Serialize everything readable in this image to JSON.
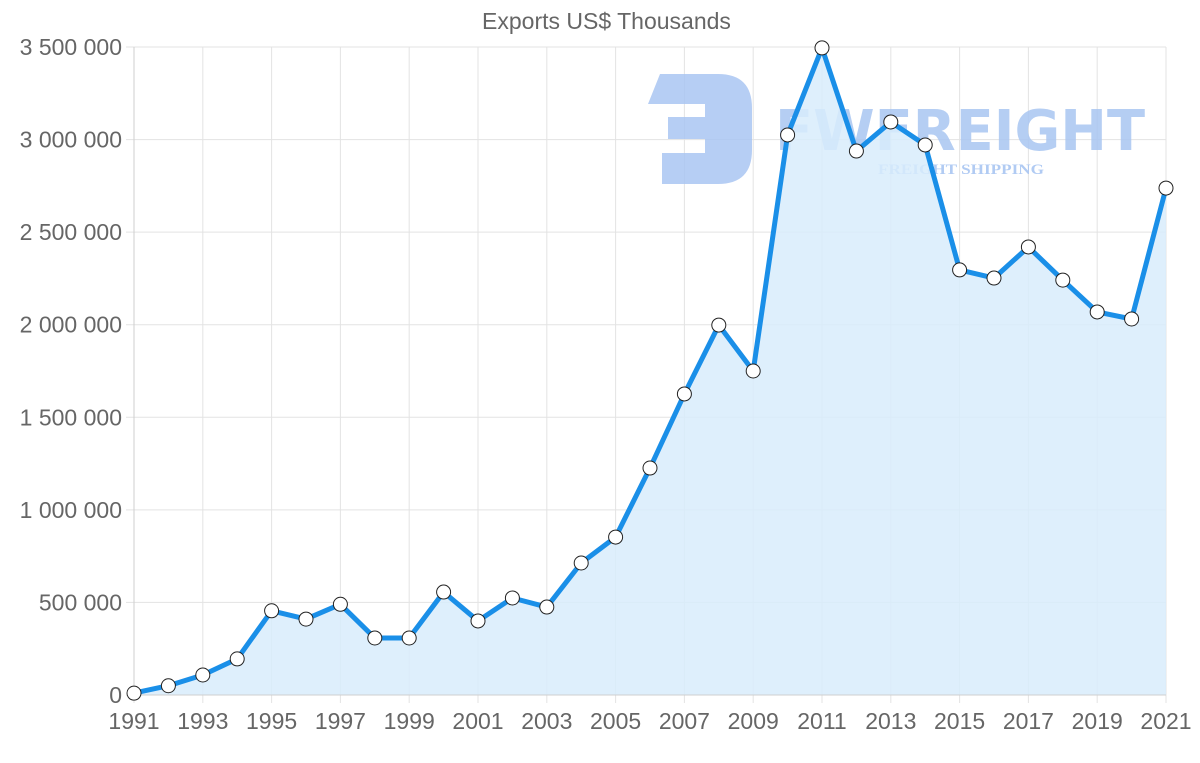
{
  "chart_data": {
    "type": "area",
    "title": "Exports US$ Thousands",
    "xlabel": "",
    "ylabel": "",
    "x": [
      1991,
      1992,
      1993,
      1994,
      1995,
      1996,
      1997,
      1998,
      1999,
      2000,
      2001,
      2002,
      2003,
      2004,
      2005,
      2006,
      2007,
      2008,
      2009,
      2010,
      2011,
      2012,
      2013,
      2014,
      2015,
      2016,
      2017,
      2018,
      2019,
      2020,
      2021
    ],
    "series": [
      {
        "name": "Exports US$ Thousands",
        "values": [
          10000,
          50000,
          108000,
          195000,
          455000,
          410000,
          490000,
          308000,
          308000,
          556000,
          400000,
          524000,
          475000,
          713000,
          853000,
          1226000,
          1626000,
          1998000,
          1750000,
          3025000,
          3495000,
          2938000,
          3095000,
          2971000,
          2296000,
          2252000,
          2420000,
          2241000,
          2069000,
          2031000,
          2738000
        ]
      }
    ],
    "ylim": [
      0,
      3500000
    ],
    "yticks": [
      0,
      500000,
      1000000,
      1500000,
      2000000,
      2500000,
      3000000,
      3500000
    ],
    "ytick_labels": [
      "0",
      "500 000",
      "1 000 000",
      "1 500 000",
      "2 000 000",
      "2 500 000",
      "3 000 000",
      "3 500 000"
    ],
    "xtick_labels": [
      "1991",
      "1993",
      "1995",
      "1997",
      "1999",
      "2001",
      "2003",
      "2005",
      "2007",
      "2009",
      "2011",
      "2013",
      "2015",
      "2017",
      "2019",
      "2021"
    ],
    "grid": true,
    "legend": "none",
    "colors": {
      "line": "#1a8fe8",
      "fill": "#d8ecfc",
      "point_fill": "#ffffff",
      "point_stroke": "#222222",
      "grid": "#e3e3e3",
      "axis_text": "#666666"
    }
  },
  "watermark": {
    "brand": "FWFREIGHT",
    "tagline": "FREIGHT SHIPPING",
    "color": "#a9c6f2"
  }
}
